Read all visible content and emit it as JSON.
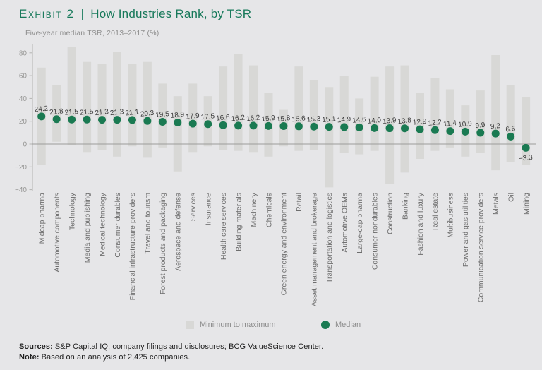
{
  "header": {
    "exhibit_label": "Exhibit 2",
    "separator": "|",
    "title": "How Industries Rank, by TSR",
    "subtitle": "Five-year median TSR, 2013–2017 (%)"
  },
  "chart_data": {
    "type": "bar",
    "variant": "floating min–max range bars with median dots",
    "title": "How Industries Rank, by TSR",
    "subtitle": "Five-year median TSR, 2013–2017 (%)",
    "categories": [
      "Midcap pharma",
      "Automotive components",
      "Technology",
      "Media and publishing",
      "Medical technology",
      "Consumer durables",
      "Financial infrastructure providers",
      "Travel and tourism",
      "Forest products and packaging",
      "Aerospace and defense",
      "Services",
      "Insurance",
      "Health care services",
      "Building materials",
      "Machinery",
      "Chemicals",
      "Green energy and environment",
      "Retail",
      "Asset management and brokerage",
      "Transportation and logistics",
      "Automotive OEMs",
      "Large-cap pharma",
      "Consumer nondurables",
      "Construction",
      "Banking",
      "Fashion and luxury",
      "Real estate",
      "Multibusiness",
      "Power and gas utilities",
      "Communication service providers",
      "Metals",
      "Oil",
      "Mining"
    ],
    "series": [
      {
        "name": "Minimum to maximum",
        "role": "range",
        "min": [
          -18,
          2,
          -1,
          -7,
          -5,
          -11,
          -2,
          -12,
          -3,
          -24,
          -7,
          -2,
          -5,
          -6,
          -7,
          -11,
          -2,
          -6,
          -5,
          -38,
          -8,
          -9,
          -6,
          -35,
          -25,
          -13,
          -6,
          -3,
          -11,
          -8,
          -23,
          -16,
          -18
        ],
        "max": [
          67,
          52,
          85,
          72,
          70,
          81,
          70,
          72,
          53,
          42,
          53,
          42,
          68,
          79,
          69,
          45,
          30,
          68,
          56,
          50,
          60,
          40,
          59,
          68,
          69,
          45,
          58,
          48,
          34,
          47,
          78,
          52,
          41
        ]
      },
      {
        "name": "Median",
        "role": "dot",
        "values": [
          24.2,
          21.8,
          21.5,
          21.5,
          21.3,
          21.3,
          21.1,
          20.3,
          19.5,
          18.9,
          17.9,
          17.5,
          16.6,
          16.2,
          16.2,
          15.9,
          15.8,
          15.6,
          15.3,
          15.1,
          14.9,
          14.6,
          14.0,
          13.9,
          13.8,
          12.9,
          12.2,
          11.4,
          10.9,
          9.9,
          9.2,
          6.6,
          -3.3
        ],
        "labels": [
          "24.2",
          "21.8",
          "21.5",
          "21.5",
          "21.3",
          "21.3",
          "21.1",
          "20.3",
          "19.5",
          "18.9",
          "17.9",
          "17.5",
          "16.6",
          "16.2",
          "16.2",
          "15.9",
          "15.8",
          "15.6",
          "15.3",
          "15.1",
          "14.9",
          "14.6",
          "14.0",
          "13.9",
          "13.8",
          "12.9",
          "12.2",
          "11.4",
          "10.9",
          "9.9",
          "9.2",
          "6.6",
          "−3.3"
        ]
      }
    ],
    "ylim": [
      -40,
      88
    ],
    "yticks": [
      80,
      60,
      40,
      20,
      0,
      -20,
      -40
    ],
    "ytick_labels": [
      "80",
      "60",
      "40",
      "20",
      "0",
      "−20",
      "−40"
    ],
    "grid": false,
    "legend_position": "bottom-center"
  },
  "legend": {
    "range_label": "Minimum to maximum",
    "median_label": "Median"
  },
  "footer": {
    "sources_label": "Sources:",
    "sources_text": "S&P Capital IQ; company filings and disclosures; BCG ValueScience Center.",
    "note_label": "Note:",
    "note_text": "Based on an analysis of 2,425 companies."
  },
  "colors": {
    "background": "#e6e6e8",
    "bar": "#d8d8d6",
    "median_dot": "#1a7a52",
    "title_green": "#17795a",
    "value_text": "#3c3c3c",
    "category_text": "#6e6e6e",
    "axis_text": "#969694",
    "axis_line": "#b4b4b2",
    "zero_line": "#9c9c9a",
    "legend_text": "#8c8c8c"
  }
}
